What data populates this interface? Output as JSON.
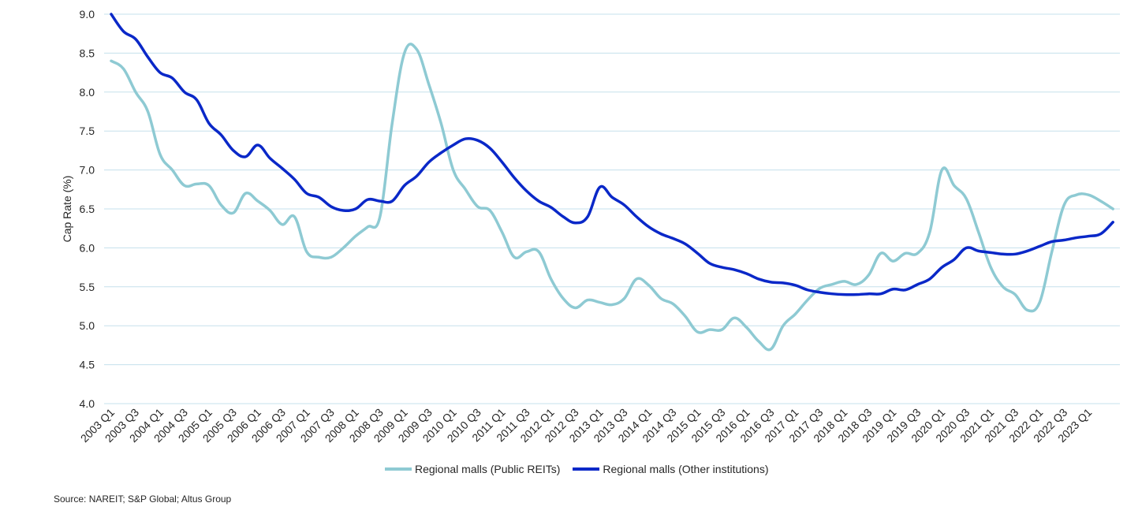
{
  "chart_data": {
    "type": "line",
    "title": "",
    "xlabel": "",
    "ylabel": "Cap Rate (%)",
    "ylim": [
      4.0,
      9.0
    ],
    "yticks": [
      "4.0",
      "4.5",
      "5.0",
      "5.5",
      "6.0",
      "6.5",
      "7.0",
      "7.5",
      "8.0",
      "8.5",
      "9.0"
    ],
    "ytick_values": [
      4.0,
      4.5,
      5.0,
      5.5,
      6.0,
      6.5,
      7.0,
      7.5,
      8.0,
      8.5,
      9.0
    ],
    "grid": "horizontal",
    "x_start": "2003 Q1",
    "x_end": "2023 Q3",
    "quarter_count": 83,
    "xtick_labels": [
      "2003 Q1",
      "2003 Q3",
      "2004 Q1",
      "2004 Q3",
      "2005 Q1",
      "2005 Q3",
      "2006 Q1",
      "2006 Q3",
      "2007 Q1",
      "2007 Q3",
      "2008 Q1",
      "2008 Q3",
      "2009 Q1",
      "2009 Q3",
      "2010 Q1",
      "2010 Q3",
      "2011 Q1",
      "2011 Q3",
      "2012 Q1",
      "2012 Q3",
      "2013 Q1",
      "2013 Q3",
      "2014 Q1",
      "2014 Q3",
      "2015 Q1",
      "2015 Q3",
      "2016 Q1",
      "2016 Q3",
      "2017 Q1",
      "2017 Q3",
      "2018 Q1",
      "2018 Q3",
      "2019 Q1",
      "2019 Q3",
      "2020 Q1",
      "2020 Q3",
      "2021 Q1",
      "2021 Q3",
      "2022 Q1",
      "2022 Q3",
      "2023 Q1"
    ],
    "xtick_every": 2,
    "legend_position": "bottom",
    "series": [
      {
        "name": "Regional malls (Public REITs)",
        "color": "#8ecad3",
        "values": [
          8.4,
          8.3,
          8.0,
          7.75,
          7.2,
          7.0,
          6.8,
          6.82,
          6.8,
          6.55,
          6.45,
          6.7,
          6.6,
          6.48,
          6.3,
          6.4,
          5.95,
          5.88,
          5.88,
          6.0,
          6.15,
          6.27,
          6.4,
          7.6,
          8.5,
          8.55,
          8.1,
          7.6,
          7.0,
          6.75,
          6.53,
          6.48,
          6.2,
          5.88,
          5.95,
          5.95,
          5.6,
          5.35,
          5.23,
          5.33,
          5.3,
          5.27,
          5.35,
          5.6,
          5.52,
          5.35,
          5.28,
          5.12,
          4.92,
          4.95,
          4.95,
          5.1,
          4.98,
          4.8,
          4.7,
          5.0,
          5.15,
          5.33,
          5.48,
          5.53,
          5.57,
          5.53,
          5.65,
          5.93,
          5.83,
          5.93,
          5.93,
          6.2,
          7.0,
          6.8,
          6.63,
          6.2,
          5.75,
          5.5,
          5.4,
          5.2,
          5.3,
          5.95,
          6.55,
          6.68,
          6.68,
          6.6,
          6.5
        ]
      },
      {
        "name": "Regional malls (Other institutions)",
        "color": "#0a28c8",
        "values": [
          9.0,
          8.78,
          8.68,
          8.45,
          8.25,
          8.18,
          8.0,
          7.9,
          7.6,
          7.45,
          7.25,
          7.17,
          7.32,
          7.15,
          7.02,
          6.88,
          6.7,
          6.65,
          6.53,
          6.48,
          6.5,
          6.62,
          6.6,
          6.6,
          6.8,
          6.92,
          7.1,
          7.22,
          7.32,
          7.4,
          7.38,
          7.28,
          7.1,
          6.9,
          6.73,
          6.6,
          6.52,
          6.4,
          6.32,
          6.4,
          6.78,
          6.65,
          6.55,
          6.4,
          6.27,
          6.18,
          6.12,
          6.05,
          5.93,
          5.8,
          5.75,
          5.72,
          5.67,
          5.6,
          5.56,
          5.55,
          5.52,
          5.46,
          5.43,
          5.41,
          5.4,
          5.4,
          5.41,
          5.41,
          5.47,
          5.46,
          5.53,
          5.6,
          5.75,
          5.85,
          6.0,
          5.96,
          5.94,
          5.92,
          5.92,
          5.96,
          6.02,
          6.08,
          6.1,
          6.13,
          6.15,
          6.18,
          6.33
        ]
      }
    ],
    "gridline_color": "#c5e0ec"
  },
  "source": "Source: NAREIT; S&P Global; Altus Group"
}
